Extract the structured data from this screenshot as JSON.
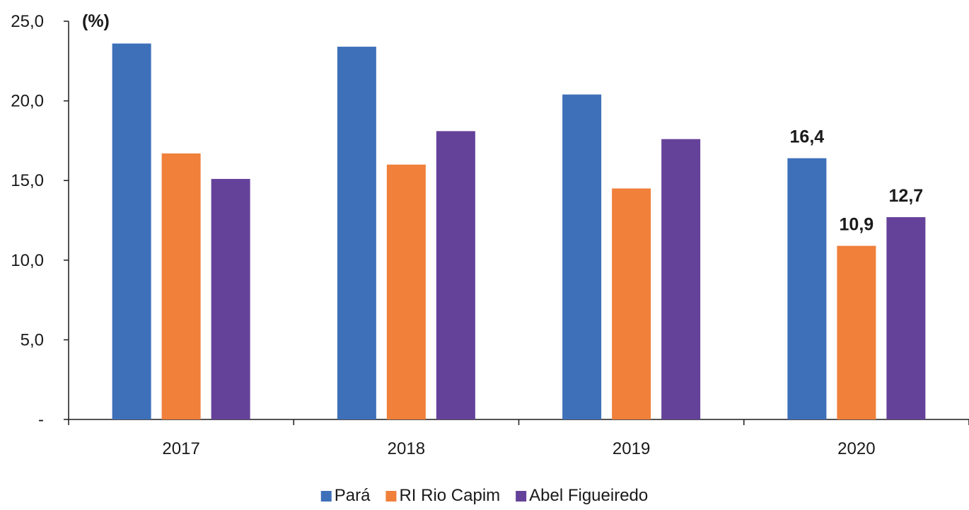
{
  "chart_data": {
    "type": "bar",
    "y_unit": "(%)",
    "categories": [
      "2017",
      "2018",
      "2019",
      "2020"
    ],
    "series": [
      {
        "name": "Pará",
        "color": "#3E70B9",
        "values": [
          23.6,
          23.4,
          20.4,
          16.4
        ]
      },
      {
        "name": "RI Rio Capim",
        "color": "#F0803A",
        "values": [
          16.7,
          16.0,
          14.5,
          10.9
        ]
      },
      {
        "name": "Abel Figueiredo",
        "color": "#65429A",
        "values": [
          15.1,
          18.1,
          17.6,
          12.7
        ]
      }
    ],
    "data_labels": [
      {
        "series": 0,
        "category": 3,
        "text": "16,4"
      },
      {
        "series": 1,
        "category": 3,
        "text": "10,9"
      },
      {
        "series": 2,
        "category": 3,
        "text": "12,7"
      }
    ],
    "y_ticks": [
      {
        "value": 0,
        "label": "-"
      },
      {
        "value": 5,
        "label": "5,0"
      },
      {
        "value": 10,
        "label": "10,0"
      },
      {
        "value": 15,
        "label": "15,0"
      },
      {
        "value": 20,
        "label": "20,0"
      },
      {
        "value": 25,
        "label": "25,0"
      }
    ],
    "ylim": [
      0,
      25
    ],
    "grid": false,
    "legend_position": "bottom-center"
  }
}
